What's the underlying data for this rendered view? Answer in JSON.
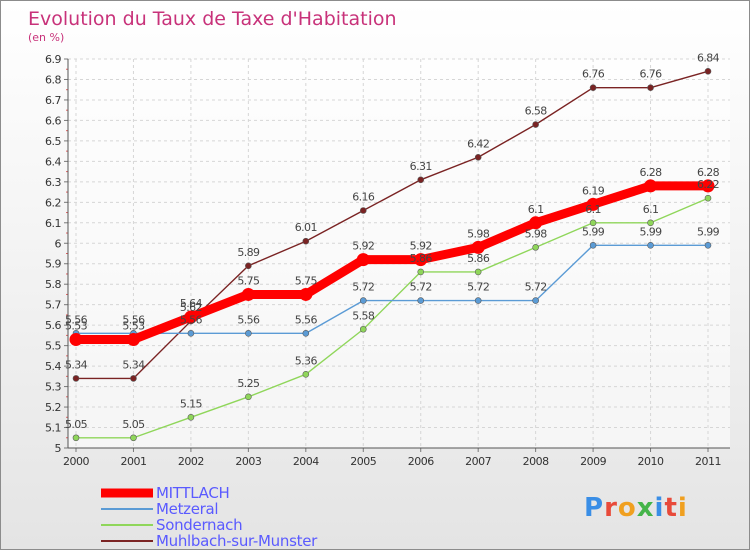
{
  "chart_data": {
    "type": "line",
    "title": "Evolution du Taux de Taxe d'Habitation",
    "subtitle": "(en %)",
    "x": [
      "2000",
      "2001",
      "2002",
      "2003",
      "2004",
      "2005",
      "2006",
      "2007",
      "2008",
      "2009",
      "2010",
      "2011"
    ],
    "ylim": [
      5,
      6.9
    ],
    "y_ticks": [
      "5",
      "5.1",
      "5.2",
      "5.3",
      "5.4",
      "5.5",
      "5.6",
      "5.7",
      "5.8",
      "5.9",
      "6",
      "6.1",
      "6.2",
      "6.3",
      "6.4",
      "6.5",
      "6.6",
      "6.7",
      "6.8",
      "6.9"
    ],
    "grid": true,
    "legend_position": "bottom-left",
    "series": [
      {
        "name": "MITTLACH",
        "color": "#ff0000",
        "values": [
          5.53,
          5.53,
          5.64,
          5.75,
          5.75,
          5.92,
          5.92,
          5.98,
          6.1,
          6.19,
          6.28,
          6.28
        ],
        "labels": [
          "5.53",
          "5.53",
          "5.64",
          "5.75",
          "5.75",
          "5.92",
          "5.92",
          "5.98",
          "6.1",
          "6.19",
          "6.28",
          "6.28"
        ]
      },
      {
        "name": "Metzeral",
        "color": "#5b9bd5",
        "values": [
          5.56,
          5.56,
          5.56,
          5.56,
          5.56,
          5.72,
          5.72,
          5.72,
          5.72,
          5.99,
          5.99,
          5.99
        ],
        "labels": [
          "5.56",
          "5.56",
          "5.56",
          "5.56",
          "5.56",
          "5.72",
          "5.72",
          "5.72",
          "5.72",
          "5.99",
          "5.99",
          "5.99"
        ]
      },
      {
        "name": "Sondernach",
        "color": "#8fd65a",
        "values": [
          5.05,
          5.05,
          5.15,
          5.25,
          5.36,
          5.58,
          5.86,
          5.86,
          5.98,
          6.1,
          6.1,
          6.22
        ],
        "labels": [
          "5.05",
          "5.05",
          "5.15",
          "5.25",
          "5.36",
          "5.58",
          "5.86",
          "5.86",
          "5.98",
          "6.1",
          "6.1",
          "6.22"
        ]
      },
      {
        "name": "Muhlbach-sur-Munster",
        "color": "#7a2323",
        "values": [
          5.34,
          5.34,
          5.62,
          5.89,
          6.01,
          6.16,
          6.31,
          6.42,
          6.58,
          6.76,
          6.76,
          6.84
        ],
        "labels": [
          "5.34",
          "5.34",
          "5.62",
          "5.89",
          "6.01",
          "6.16",
          "6.31",
          "6.42",
          "6.58",
          "6.76",
          "6.76",
          "6.84"
        ]
      }
    ]
  },
  "logo": {
    "text": "Proxiti",
    "letter_colors": [
      "#3a8ee6",
      "#e84a3a",
      "#f0a020",
      "#44b449",
      "#3a8ee6",
      "#e84a3a",
      "#f0a020"
    ]
  }
}
